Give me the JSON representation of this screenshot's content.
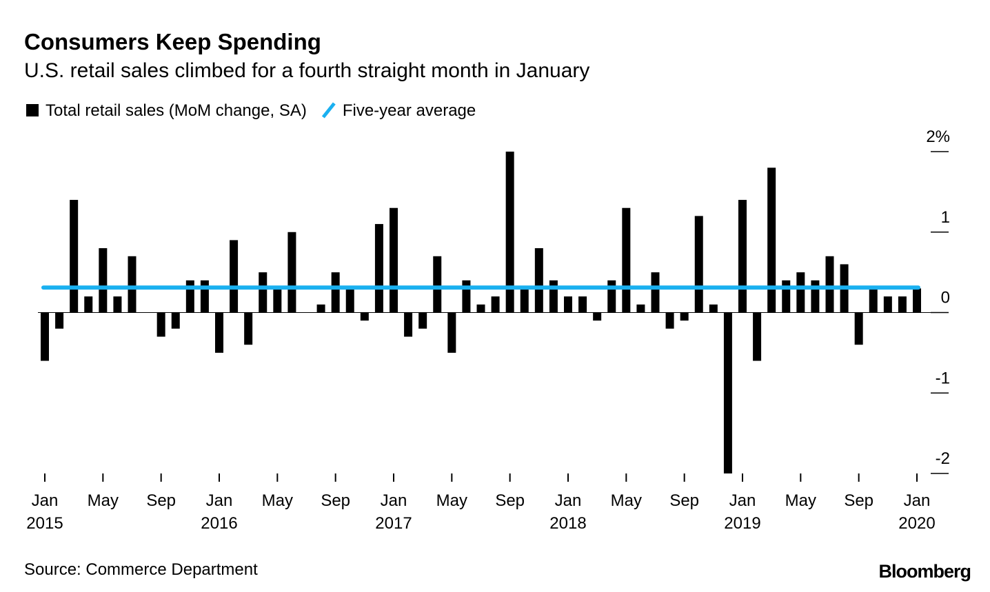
{
  "chart_data": {
    "type": "bar",
    "title": "Consumers Keep Spending",
    "subtitle": "U.S. retail sales climbed for a fourth straight month in January",
    "source": "Source: Commerce Department",
    "brand": "Bloomberg",
    "categories": [
      "Jan 2015",
      null,
      null,
      null,
      "May",
      null,
      null,
      null,
      "Sep",
      null,
      null,
      null,
      "Jan 2016",
      null,
      null,
      null,
      "May",
      null,
      null,
      null,
      "Sep",
      null,
      null,
      null,
      "Jan 2017",
      null,
      null,
      null,
      "May",
      null,
      null,
      null,
      "Sep",
      null,
      null,
      null,
      "Jan 2018",
      null,
      null,
      null,
      "May",
      null,
      null,
      null,
      "Sep",
      null,
      null,
      null,
      "Jan 2019",
      null,
      null,
      null,
      "May",
      null,
      null,
      null,
      "Sep",
      null,
      null,
      null,
      "Jan 2020"
    ],
    "series": [
      {
        "name": "Total retail sales (MoM change, SA)",
        "color": "#000000",
        "values": [
          -0.6,
          -0.2,
          1.4,
          0.2,
          0.8,
          0.2,
          0.7,
          0,
          -0.3,
          -0.2,
          0.4,
          0.4,
          -0.5,
          0.9,
          -0.4,
          0.5,
          0.3,
          1.0,
          0,
          0.1,
          0.5,
          0.3,
          -0.1,
          1.1,
          1.3,
          -0.3,
          -0.2,
          0.7,
          -0.5,
          0.4,
          0.1,
          0.2,
          2.0,
          0.3,
          0.8,
          0.4,
          0.2,
          0.2,
          -0.1,
          0.4,
          1.3,
          0.1,
          0.5,
          -0.2,
          -0.1,
          1.2,
          0.1,
          -2.0,
          1.4,
          -0.6,
          1.8,
          0.4,
          0.5,
          0.4,
          0.7,
          0.6,
          -0.4,
          0.3,
          0.2,
          0.2,
          0.3
        ]
      },
      {
        "name": "Five-year average",
        "color": "#1ab0f0",
        "type": "hline",
        "value": 0.31
      }
    ],
    "ylim": [
      -2,
      2
    ],
    "yticks": [
      {
        "value": 2,
        "label": "2%"
      },
      1,
      0,
      -1,
      -2
    ]
  }
}
